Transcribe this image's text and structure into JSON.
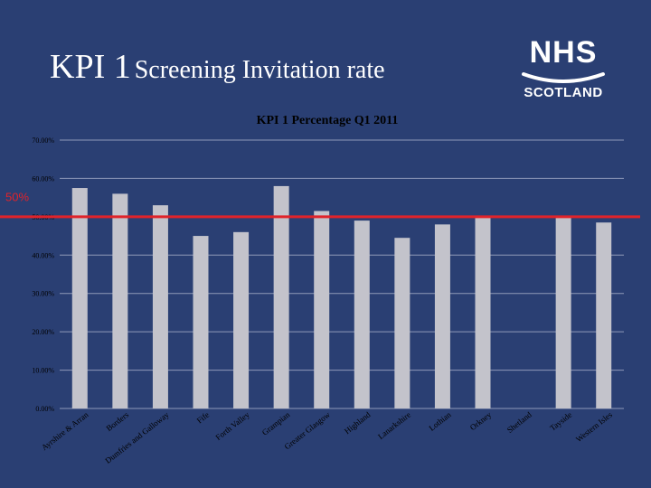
{
  "slide": {
    "title_prefix": "KPI 1",
    "title_rest": "Screening Invitation rate"
  },
  "logo": {
    "top": "NHS",
    "bottom": "SCOTLAND"
  },
  "colors": {
    "background": "#2a3f73",
    "bar": "#c3c3cb",
    "reference_line": "#e0232a",
    "text": "#ffffff"
  },
  "chart_data": {
    "type": "bar",
    "title": "KPI 1 Percentage Q1 2011",
    "xlabel": "",
    "ylabel": "",
    "ylim": [
      0,
      70
    ],
    "yticks": [
      0,
      10,
      20,
      30,
      40,
      50,
      60,
      70
    ],
    "ytick_labels": [
      "0.00%",
      "10.00%",
      "20.00%",
      "30.00%",
      "40.00%",
      "50.00%",
      "60.00%",
      "70.00%"
    ],
    "grid": true,
    "categories": [
      "Ayrshire & Arran",
      "Borders",
      "Dumfries and Galloway",
      "Fife",
      "Forth Valley",
      "Grampian",
      "Greater Glasgow",
      "Highland",
      "Lanarkshire",
      "Lothian",
      "Orkney",
      "Shetland",
      "Tayside",
      "Western Isles"
    ],
    "values": [
      57.5,
      56.0,
      53.0,
      45.0,
      46.0,
      58.0,
      51.5,
      49.0,
      44.5,
      48.0,
      50.0,
      0,
      50.0,
      48.5
    ],
    "reference_line": {
      "value": 50,
      "label": "50%"
    }
  }
}
